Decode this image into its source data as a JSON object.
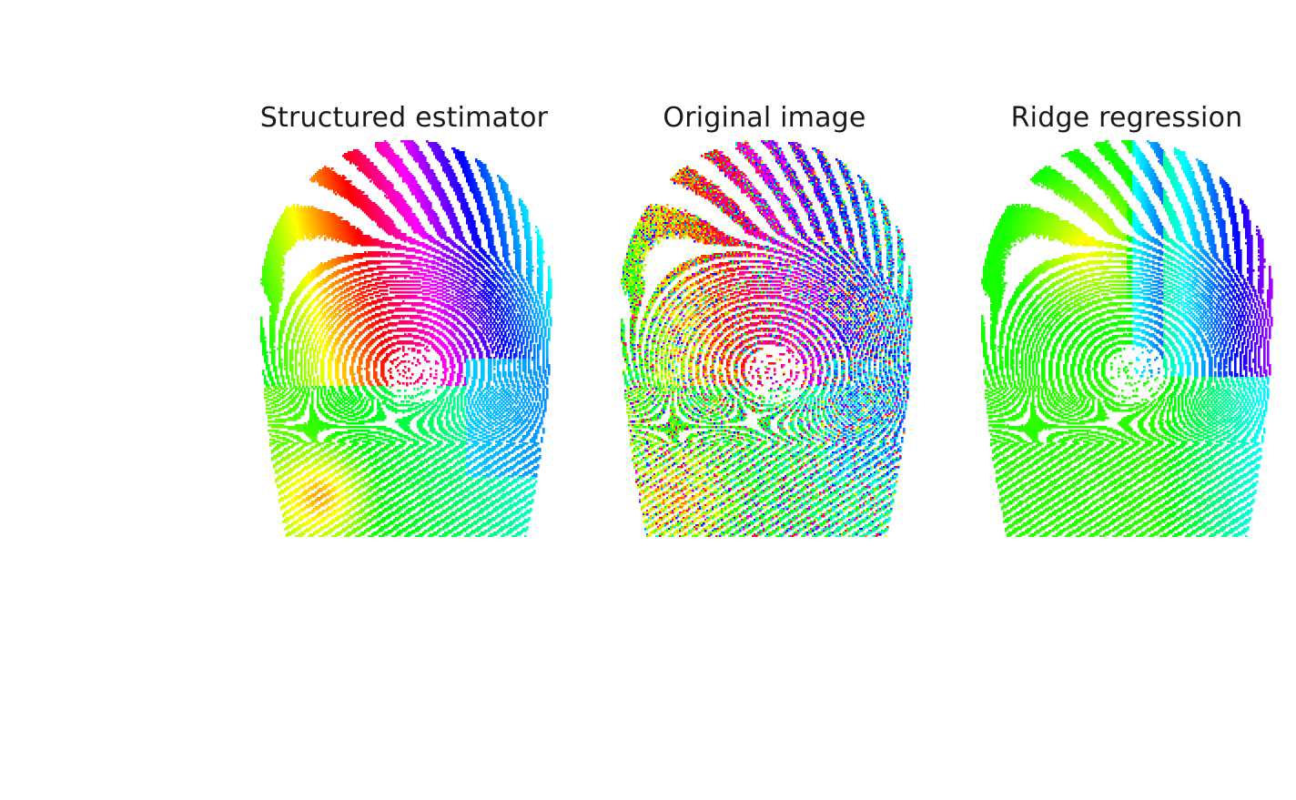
{
  "figure": {
    "panels": [
      {
        "title": "Structured estimator",
        "hue_field": "smooth-structured"
      },
      {
        "title": "Original image",
        "hue_field": "noisy"
      },
      {
        "title": "Ridge regression",
        "hue_field": "smooth-ridge"
      }
    ]
  }
}
